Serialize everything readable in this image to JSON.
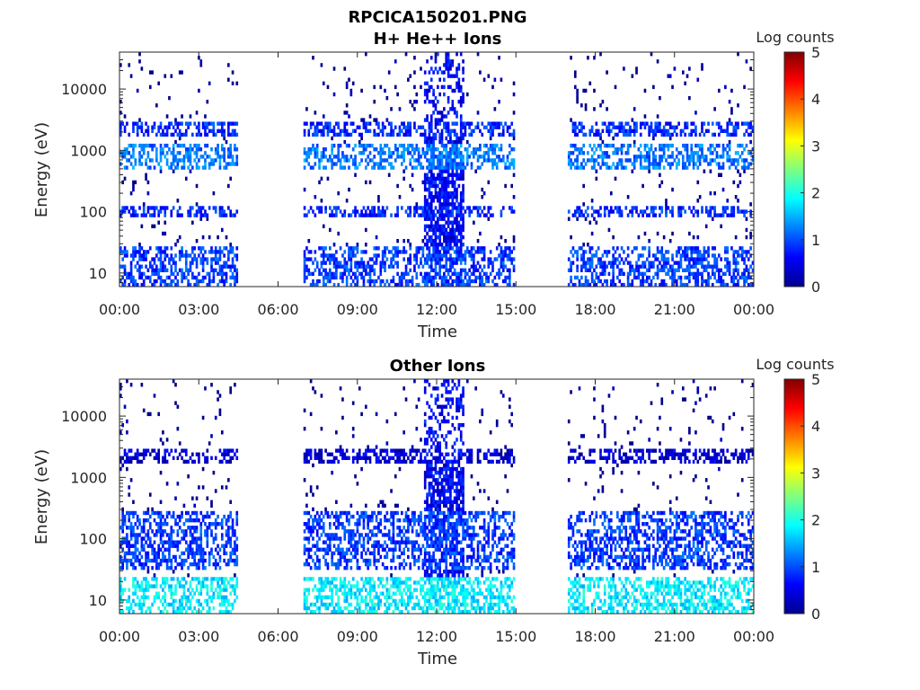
{
  "figure": {
    "title": "RPCICA150201.PNG"
  },
  "chart_data": [
    {
      "type": "heatmap",
      "title": "H+ He++ Ions",
      "xlabel": "Time",
      "ylabel": "Energy (eV)",
      "x_ticks": [
        "00:00",
        "03:00",
        "06:00",
        "09:00",
        "12:00",
        "15:00",
        "18:00",
        "21:00",
        "00:00"
      ],
      "xlim_hours": [
        0,
        24
      ],
      "y_scale": "log",
      "y_ticks": [
        "10",
        "100",
        "1000",
        "10000"
      ],
      "ylim": [
        6,
        40000
      ],
      "colorbar": {
        "label": "Log counts",
        "ticks": [
          "0",
          "1",
          "2",
          "3",
          "4",
          "5"
        ],
        "range": [
          0,
          5
        ],
        "colormap": "jet"
      },
      "data_coverage_hours": [
        [
          0,
          4.5
        ],
        [
          7,
          15
        ],
        [
          17,
          24
        ]
      ],
      "features": [
        {
          "energy_band_eV": [
            6,
            28
          ],
          "level": 0.9
        },
        {
          "energy_band_eV": [
            80,
            130
          ],
          "level": 0.8
        },
        {
          "energy_band_eV": [
            500,
            1200
          ],
          "level": 1.2
        },
        {
          "energy_band_eV": [
            1800,
            3000
          ],
          "level": 0.8
        }
      ],
      "enhancement_hours": [
        11.5,
        13
      ]
    },
    {
      "type": "heatmap",
      "title": "Other Ions",
      "xlabel": "Time",
      "ylabel": "Energy (eV)",
      "x_ticks": [
        "00:00",
        "03:00",
        "06:00",
        "09:00",
        "12:00",
        "15:00",
        "18:00",
        "21:00",
        "00:00"
      ],
      "xlim_hours": [
        0,
        24
      ],
      "y_scale": "log",
      "y_ticks": [
        "10",
        "100",
        "1000",
        "10000"
      ],
      "ylim": [
        6,
        40000
      ],
      "colorbar": {
        "label": "Log counts",
        "ticks": [
          "0",
          "1",
          "2",
          "3",
          "4",
          "5"
        ],
        "range": [
          0,
          5
        ],
        "colormap": "jet"
      },
      "data_coverage_hours": [
        [
          0,
          4.5
        ],
        [
          7,
          15
        ],
        [
          17,
          24
        ]
      ],
      "features": [
        {
          "energy_band_eV": [
            6,
            25
          ],
          "level": 1.8
        },
        {
          "energy_band_eV": [
            30,
            300
          ],
          "level": 0.9
        },
        {
          "energy_band_eV": [
            1800,
            2800
          ],
          "level": 0.4
        }
      ],
      "enhancement_hours": [
        11.5,
        13
      ]
    }
  ]
}
